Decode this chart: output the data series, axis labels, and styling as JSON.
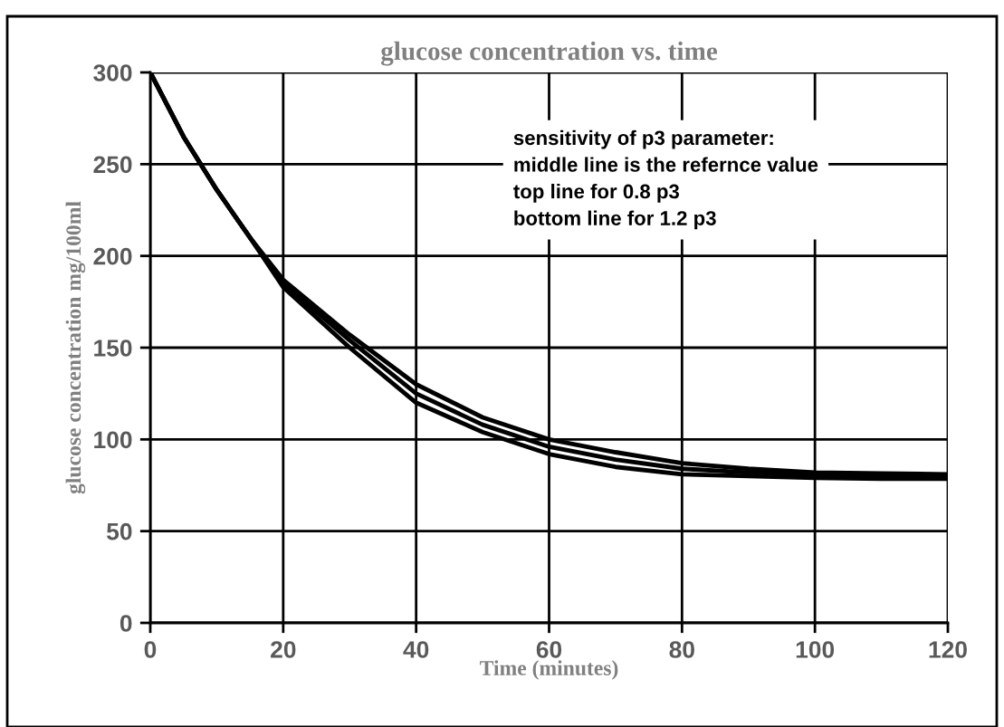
{
  "chart_data": {
    "type": "line",
    "title": "glucose concentration vs. time",
    "xlabel": "Time (minutes)",
    "ylabel": "glucose concentration mg/100ml",
    "x": [
      0,
      5,
      10,
      15,
      20,
      30,
      40,
      50,
      60,
      70,
      80,
      90,
      100,
      110,
      120
    ],
    "series": [
      {
        "color": "#000000",
        "values": [
          300,
          265,
          236,
          210,
          187,
          157,
          130,
          112,
          100,
          93,
          87,
          84,
          82,
          81.5,
          81
        ]
      },
      {
        "color": "#000000",
        "values": [
          300,
          265,
          236,
          210,
          185,
          154,
          125,
          108,
          96,
          89,
          84,
          82,
          80.5,
          80,
          80
        ]
      },
      {
        "color": "#000000",
        "values": [
          300,
          265,
          236,
          210,
          183,
          150,
          120,
          104,
          92,
          85,
          81,
          80,
          79,
          78.5,
          78.5
        ]
      }
    ],
    "annotations": [
      "sensitivity of p3 parameter:\nmiddle line is the refernce value\ntop line for 0.8 p3\nbottom line for 1.2 p3"
    ],
    "xlim": [
      0,
      120
    ],
    "xticks": [
      0,
      20,
      40,
      60,
      80,
      100,
      120
    ],
    "ylim": [
      0,
      300
    ],
    "yticks": [
      0,
      50,
      100,
      150,
      200,
      250,
      300
    ],
    "grid": true,
    "marker": "none",
    "line_style": "solid"
  }
}
